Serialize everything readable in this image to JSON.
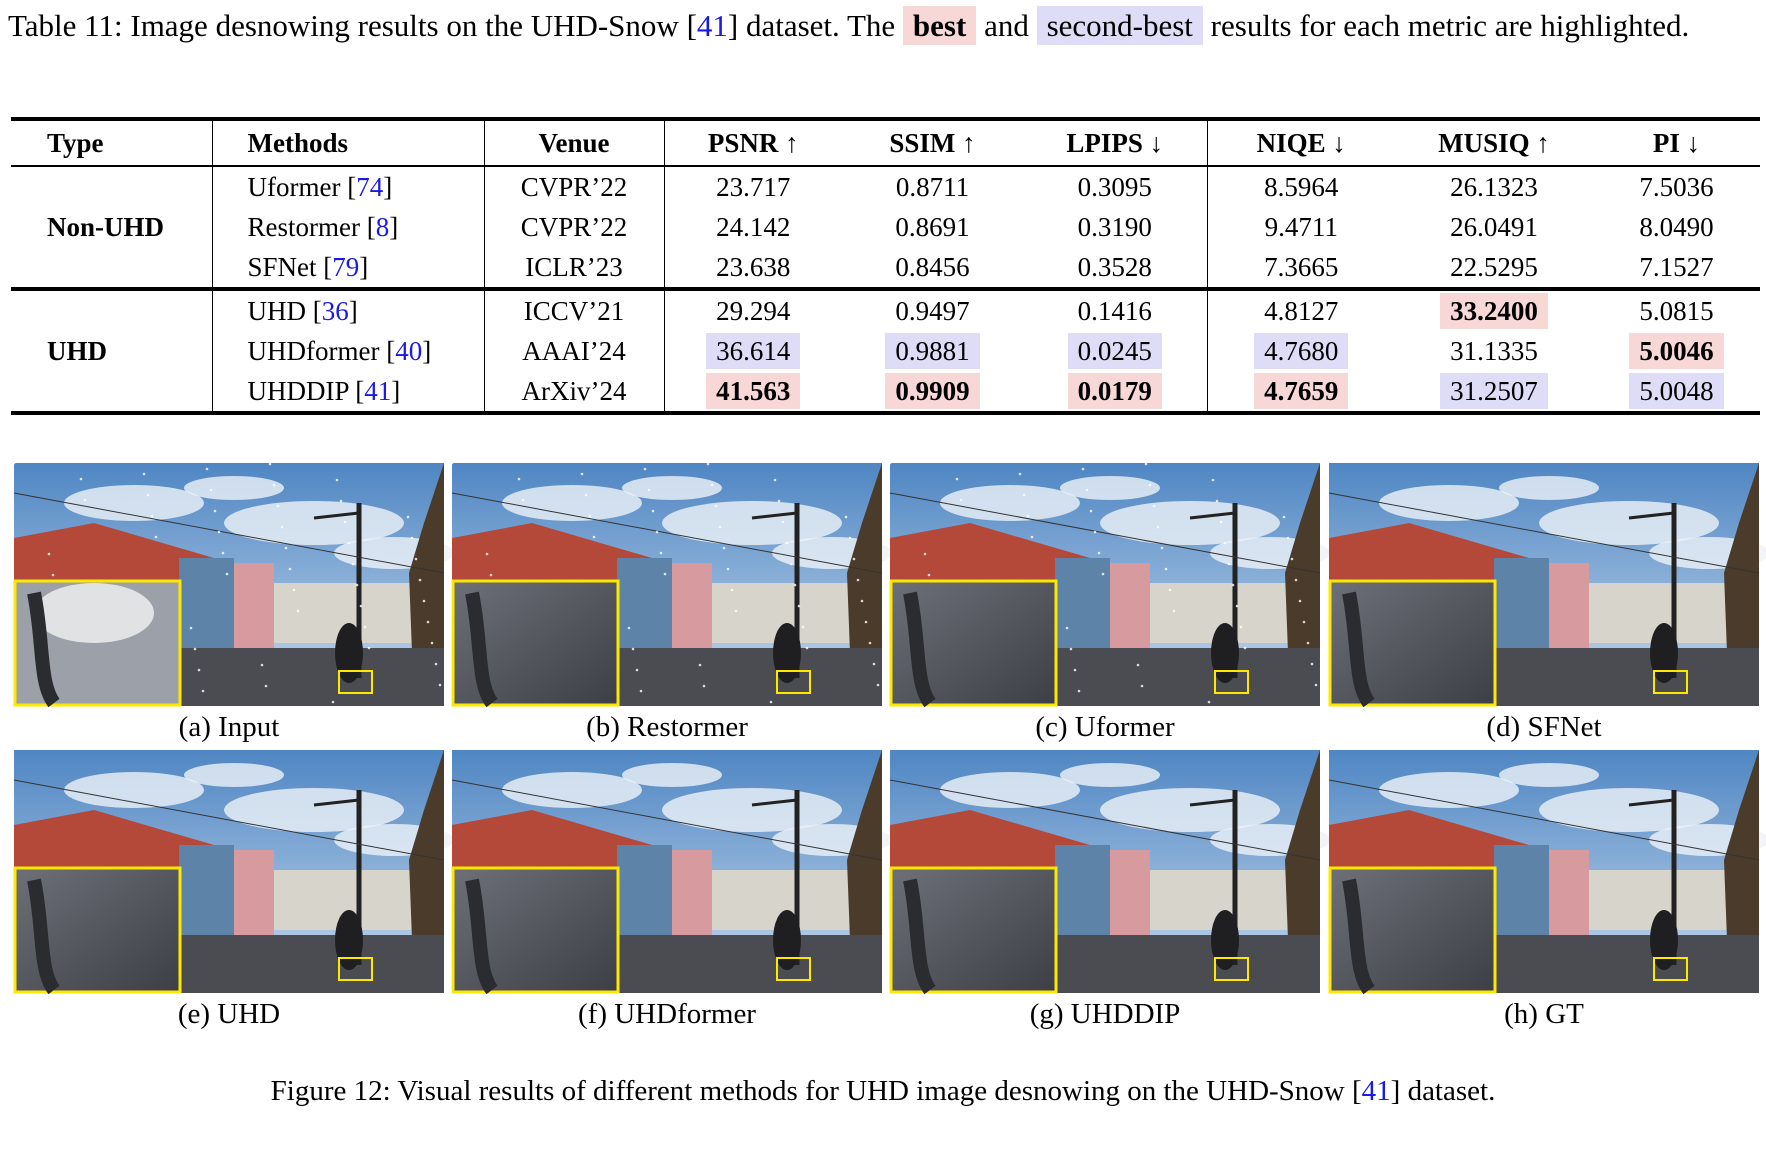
{
  "caption": [
    "Table 11: Image desnowing results on the UHD-Snow [",
    "41",
    "] dataset. The ",
    "best",
    " and ",
    "second-best",
    " results for each metric are highlighted."
  ],
  "table": {
    "header": [
      "Type",
      "Methods",
      "Venue",
      "PSNR ↑",
      "SSIM ↑",
      "LPIPS ↓",
      "NIQE ↓",
      "MUSIQ ↑",
      "PI ↓"
    ],
    "groups": [
      {
        "type": "Non-UHD",
        "rows": [
          {
            "method": [
              "Uformer [",
              "74",
              "]"
            ],
            "cells": [
              "CVPR’22",
              "23.717",
              "0.8711",
              "0.3095",
              "8.5964",
              "26.1323",
              "7.5036"
            ]
          },
          {
            "method": [
              "Restormer [",
              "8",
              "]"
            ],
            "cells": [
              "CVPR’22",
              "24.142",
              "0.8691",
              "0.3190",
              "9.4711",
              "26.0491",
              "8.0490"
            ]
          },
          {
            "method": [
              "SFNet [",
              "79",
              "]"
            ],
            "cells": [
              "ICLR’23",
              "23.638",
              "0.8456",
              "0.3528",
              "7.3665",
              "22.5295",
              "7.1527"
            ]
          }
        ]
      },
      {
        "type": "UHD",
        "rows": [
          {
            "method": [
              "UHD [",
              "36",
              "]"
            ],
            "cells": [
              "ICCV’21",
              "29.294",
              "0.9497",
              "0.1416",
              "4.8127",
              "33.2400",
              "5.0815"
            ]
          },
          {
            "method": [
              "UHDformer [",
              "40",
              "]"
            ],
            "cells": [
              "AAAI’24",
              "36.614",
              "0.9881",
              "0.0245",
              "4.7680",
              "31.1335",
              "5.0046"
            ]
          },
          {
            "method": [
              "UHDDIP [",
              "41",
              "]"
            ],
            "cells": [
              "ArXiv’24",
              "41.563",
              "0.9909",
              "0.0179",
              "4.7659",
              "31.2507",
              "5.0048"
            ]
          }
        ]
      }
    ]
  },
  "figure": {
    "panels": [
      "(a) Input",
      "(b) Restormer",
      "(c) Uformer",
      "(d) SFNet",
      "(e) UHD",
      "(f) UHDformer",
      "(g) UHDDIP",
      "(h) GT"
    ],
    "caption": [
      "Figure 12: Visual results of different methods for UHD image desnowing on the UHD-Snow [",
      "41",
      "] dataset."
    ]
  }
}
